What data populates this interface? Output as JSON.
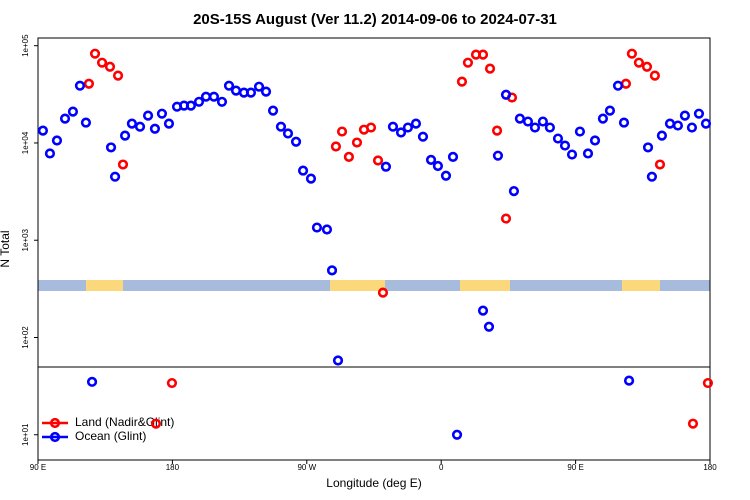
{
  "chart_data": {
    "type": "scatter",
    "title": "20S-15S August (Ver 11.2)   2014-09-06 to 2024-07-31",
    "x_label": "Longitude (deg E)",
    "y_label": "N Total",
    "log_y": true,
    "xlim": [
      90,
      540
    ],
    "xticks": [
      {
        "value": 90,
        "label": "90 E"
      },
      {
        "value": 180,
        "label": "180"
      },
      {
        "value": 270,
        "label": "90 W"
      },
      {
        "value": 360,
        "label": "0"
      },
      {
        "value": 450,
        "label": "90 E"
      },
      {
        "value": 540,
        "label": "180"
      }
    ],
    "ylim": [
      5.5,
      120000
    ],
    "yticks": [
      {
        "value": 10,
        "label": "1e+01"
      },
      {
        "value": 100,
        "label": "1e+02"
      },
      {
        "value": 1000,
        "label": "1e+03"
      },
      {
        "value": 10000,
        "label": "1e+04"
      },
      {
        "value": 100000,
        "label": "1e+05"
      }
    ],
    "legend": "bottom-left",
    "series": [
      {
        "name": "Land (Nadir&Glint)",
        "color": "#ff0000",
        "x": [
          124.1,
          128.2,
          132.9,
          138.2,
          143.6,
          146.9,
          169.0,
          179.7,
          289.5,
          293.6,
          298.2,
          303.6,
          308.3,
          313.0,
          317.7,
          321.0,
          373.9,
          377.9,
          383.3,
          388.0,
          392.7,
          397.4,
          403.4,
          407.4,
          483.7,
          487.7,
          492.4,
          497.8,
          503.1,
          506.5,
          528.6,
          538.6
        ],
        "values": [
          40600,
          82800,
          66900,
          60800,
          49200,
          6000,
          13,
          34,
          9200,
          13100,
          7200,
          10100,
          13700,
          14400,
          6600,
          289,
          42700,
          66900,
          80900,
          80900,
          58100,
          13400,
          1670,
          29300,
          40600,
          82800,
          66900,
          60800,
          49200,
          6000,
          13,
          34
        ]
      },
      {
        "name": "Ocean (Glint)",
        "color": "#0000ff",
        "x": [
          93.3,
          98.0,
          102.7,
          108.1,
          113.4,
          118.1,
          122.1,
          126.2,
          138.9,
          141.6,
          148.3,
          152.9,
          158.3,
          163.7,
          168.3,
          173.0,
          177.7,
          183.1,
          187.8,
          192.4,
          197.8,
          202.5,
          207.8,
          213.2,
          217.9,
          222.6,
          227.9,
          232.6,
          238.0,
          242.7,
          247.4,
          252.7,
          257.4,
          262.8,
          267.5,
          272.8,
          276.8,
          283.5,
          286.9,
          290.9,
          323.0,
          327.7,
          333.1,
          337.7,
          343.1,
          347.8,
          353.2,
          357.8,
          363.2,
          367.9,
          370.6,
          388.0,
          392.0,
          398.0,
          403.4,
          408.7,
          412.7,
          418.1,
          422.8,
          428.1,
          432.8,
          438.2,
          442.9,
          447.6,
          452.9,
          458.3,
          463.0,
          468.3,
          473.0,
          478.4,
          482.4,
          485.8,
          498.5,
          501.1,
          507.8,
          513.2,
          518.5,
          523.2,
          527.9,
          532.6,
          537.3
        ],
        "values": [
          13400,
          7800,
          10600,
          17800,
          21000,
          38800,
          16200,
          35,
          9000,
          4500,
          11900,
          15800,
          14700,
          19100,
          14000,
          20000,
          15800,
          23600,
          24200,
          24200,
          26500,
          29900,
          29900,
          26500,
          38800,
          34500,
          32900,
          32900,
          37900,
          33700,
          21500,
          14700,
          12500,
          10300,
          5200,
          4300,
          1350,
          1290,
          490,
          58,
          5700,
          14700,
          12800,
          14400,
          15800,
          11600,
          6700,
          5800,
          4600,
          7200,
          10,
          189,
          129,
          7400,
          31300,
          3200,
          17800,
          16600,
          14400,
          16600,
          14400,
          11100,
          9400,
          7600,
          13100,
          7800,
          10600,
          17800,
          21500,
          38800,
          16200,
          36,
          9000,
          4500,
          11900,
          15800,
          15100,
          19100,
          14400,
          20000,
          15800
        ]
      }
    ]
  }
}
